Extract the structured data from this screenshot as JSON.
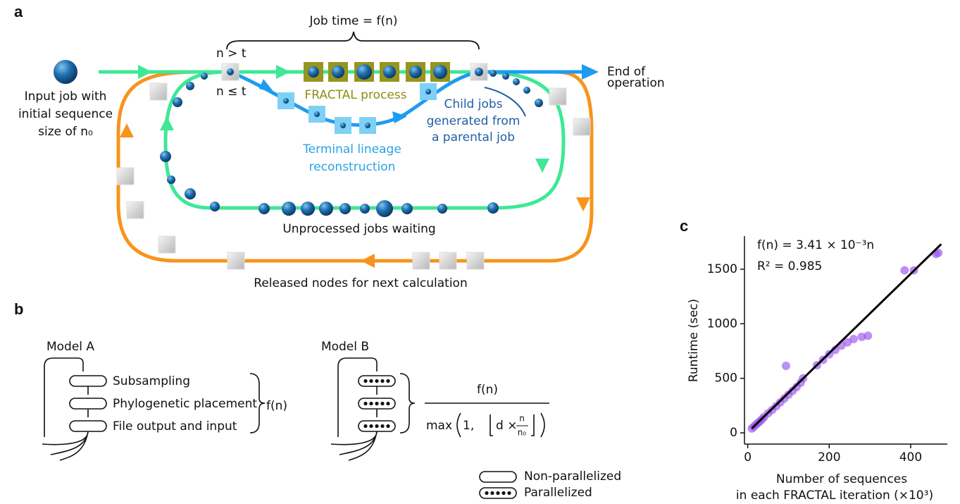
{
  "panel_a": {
    "label": "a",
    "job_time": "Job time = f(n)",
    "n_gt_t": "n > t",
    "n_le_t": "n ≤ t",
    "input_job": [
      "Input job with",
      "initial sequence",
      "size of n₀"
    ],
    "end": [
      "End of",
      "operation"
    ],
    "fractal": "FRACTAL process",
    "child": [
      "Child jobs",
      "generated from",
      "a parental job"
    ],
    "terminal": [
      "Terminal lineage",
      "reconstruction"
    ],
    "unprocessed": "Unprocessed jobs waiting",
    "released": "Released nodes for next calculation"
  },
  "panel_b": {
    "label": "b",
    "model_a": "Model A",
    "steps": [
      "Subsampling",
      "Phylogenetic placement",
      "File output and input"
    ],
    "model_a_time": "f(n)",
    "model_b": "Model B",
    "numerator": "f(n)",
    "denominator": {
      "max": "max",
      "one": "1,",
      "d": "d ×",
      "n": "n",
      "n0": "n₀"
    },
    "legend": [
      "Non-parallelized",
      "Parallelized"
    ]
  },
  "chart_data": {
    "type": "scatter",
    "label": "c",
    "formula": "f(n) = 3.41 × 10⁻³n",
    "r2": "R² = 0.985",
    "ylabel": "Runtime (sec)",
    "xlabel": [
      "Number of sequences",
      "in each FRACTAL iteration (×10³)"
    ],
    "color": "#9a55ea",
    "x": [
      10,
      15,
      20,
      25,
      30,
      35,
      40,
      50,
      60,
      70,
      80,
      90,
      100,
      110,
      120,
      130,
      136,
      94,
      170,
      185,
      200,
      215,
      230,
      245,
      260,
      280,
      295,
      385,
      408,
      462,
      468
    ],
    "y": [
      40,
      55,
      75,
      90,
      105,
      125,
      145,
      180,
      210,
      245,
      280,
      315,
      350,
      385,
      420,
      460,
      500,
      614,
      620,
      670,
      720,
      760,
      800,
      830,
      860,
      880,
      890,
      1490,
      1490,
      1640,
      1650
    ],
    "fit_line": {
      "x": [
        10,
        475
      ],
      "y": [
        40,
        1730
      ]
    },
    "xlim": [
      -8,
      490
    ],
    "ylim": [
      -103,
      1803
    ],
    "xticks": [
      0,
      200,
      400
    ],
    "yticks": [
      0,
      500,
      1000,
      1500
    ]
  }
}
